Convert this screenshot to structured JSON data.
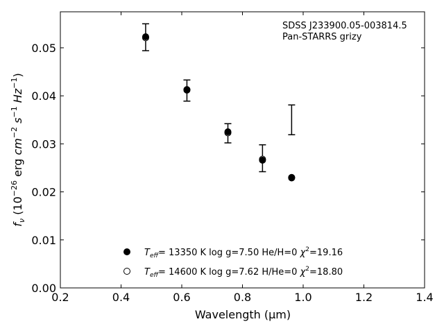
{
  "chart_data": {
    "type": "scatter",
    "xlabel": "Wavelength (μm)",
    "ylabel": "f_ν (10^−26 erg cm^−2 s^−1 Hz^−1)",
    "xlim": [
      0.2,
      1.4
    ],
    "ylim": [
      0.0,
      0.0575
    ],
    "xticks": [
      "0.2",
      "0.4",
      "0.6",
      "0.8",
      "1.0",
      "1.2",
      "1.4"
    ],
    "yticks": [
      "0.00",
      "0.01",
      "0.02",
      "0.03",
      "0.04",
      "0.05"
    ],
    "grid": false,
    "annotation": [
      "SDSS J233900.05-003814.5",
      "Pan-STARRS grizy"
    ],
    "legend_position": "lower-center",
    "observed": {
      "x": [
        0.481,
        0.617,
        0.752,
        0.866,
        0.962
      ],
      "y": [
        0.0522,
        0.0411,
        0.0322,
        0.027,
        0.035
      ],
      "yerr": [
        0.0028,
        0.0022,
        0.002,
        0.0028,
        0.0031
      ]
    },
    "series": [
      {
        "name": "T_eff= 13350 K  log g=7.50  He/H=0  χ²=19.16",
        "legend": {
          "t": "= 13350 K  log g=7.50  He/H=0  ",
          "chi": "=19.16"
        },
        "marker": "filled-circle",
        "x": [
          0.481,
          0.617,
          0.752,
          0.866,
          0.962
        ],
        "y": [
          0.0523,
          0.0413,
          0.0325,
          0.0266,
          0.023
        ]
      },
      {
        "name": "T_eff= 14600 K  log g=7.62  H/He=0  χ²=18.80",
        "legend": {
          "t": "= 14600 K  log g=7.62  H/He=0  ",
          "chi": "=18.80"
        },
        "marker": "open-circle",
        "x": [
          0.481,
          0.617,
          0.752,
          0.866,
          0.962
        ],
        "y": [
          0.0521,
          0.0412,
          0.0323,
          0.0268,
          0.0229
        ]
      }
    ]
  }
}
